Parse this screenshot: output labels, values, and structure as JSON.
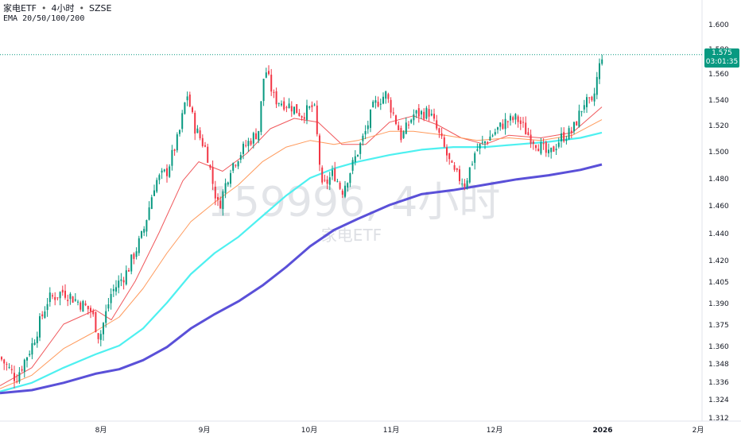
{
  "header": {
    "title": "家电ETF",
    "separator": "•",
    "interval": "4小时",
    "exchange": "SZSE",
    "indicator": "EMA 20/50/100/200"
  },
  "watermark": {
    "symbol_interval": "159996, 4小时",
    "name": "家电ETF"
  },
  "price_tag": {
    "price": "1.575",
    "countdown": "03:01:35"
  },
  "colors": {
    "up": "#089981",
    "down": "#f23645",
    "ema20": "#f0585c",
    "ema50": "#ff9a5c",
    "ema100": "#4ef0f0",
    "ema200": "#5a50d8",
    "price_line": "#089981"
  },
  "chart_data": {
    "type": "candlestick",
    "y_ticks": [
      "1.600",
      "1.580",
      "1.560",
      "1.540",
      "1.520",
      "1.500",
      "1.480",
      "1.460",
      "1.440",
      "1.420",
      "1.405",
      "1.390",
      "1.375",
      "1.360",
      "1.348",
      "1.336",
      "1.324",
      "1.312"
    ],
    "x_ticks": [
      "8月",
      "9月",
      "10月",
      "11月",
      "12月",
      "2026",
      "2月"
    ],
    "last_price": 1.575,
    "series": [
      {
        "name": "EMA 20",
        "points": [
          [
            0,
            1.333
          ],
          [
            40,
            1.345
          ],
          [
            80,
            1.375
          ],
          [
            120,
            1.385
          ],
          [
            140,
            1.378
          ],
          [
            170,
            1.405
          ],
          [
            200,
            1.44
          ],
          [
            230,
            1.478
          ],
          [
            250,
            1.492
          ],
          [
            280,
            1.485
          ],
          [
            310,
            1.498
          ],
          [
            340,
            1.517
          ],
          [
            370,
            1.525
          ],
          [
            400,
            1.522
          ],
          [
            430,
            1.505
          ],
          [
            460,
            1.505
          ],
          [
            490,
            1.522
          ],
          [
            520,
            1.527
          ],
          [
            550,
            1.52
          ],
          [
            580,
            1.51
          ],
          [
            610,
            1.505
          ],
          [
            640,
            1.512
          ],
          [
            680,
            1.51
          ],
          [
            720,
            1.514
          ],
          [
            757,
            1.534
          ]
        ]
      },
      {
        "name": "EMA 50",
        "points": [
          [
            0,
            1.331
          ],
          [
            40,
            1.34
          ],
          [
            80,
            1.358
          ],
          [
            120,
            1.37
          ],
          [
            150,
            1.38
          ],
          [
            180,
            1.4
          ],
          [
            210,
            1.425
          ],
          [
            240,
            1.448
          ],
          [
            270,
            1.462
          ],
          [
            300,
            1.475
          ],
          [
            330,
            1.492
          ],
          [
            360,
            1.503
          ],
          [
            390,
            1.508
          ],
          [
            420,
            1.505
          ],
          [
            450,
            1.508
          ],
          [
            490,
            1.515
          ],
          [
            520,
            1.515
          ],
          [
            560,
            1.512
          ],
          [
            600,
            1.508
          ],
          [
            640,
            1.51
          ],
          [
            680,
            1.508
          ],
          [
            720,
            1.512
          ],
          [
            757,
            1.524
          ]
        ]
      },
      {
        "name": "EMA 100",
        "points": [
          [
            0,
            1.329
          ],
          [
            40,
            1.335
          ],
          [
            80,
            1.345
          ],
          [
            120,
            1.354
          ],
          [
            150,
            1.36
          ],
          [
            180,
            1.372
          ],
          [
            210,
            1.39
          ],
          [
            240,
            1.41
          ],
          [
            270,
            1.425
          ],
          [
            300,
            1.437
          ],
          [
            330,
            1.452
          ],
          [
            360,
            1.467
          ],
          [
            390,
            1.48
          ],
          [
            420,
            1.487
          ],
          [
            450,
            1.492
          ],
          [
            490,
            1.497
          ],
          [
            530,
            1.501
          ],
          [
            570,
            1.503
          ],
          [
            610,
            1.503
          ],
          [
            650,
            1.505
          ],
          [
            690,
            1.507
          ],
          [
            730,
            1.51
          ],
          [
            757,
            1.514
          ]
        ]
      },
      {
        "name": "EMA 200",
        "points": [
          [
            0,
            1.328
          ],
          [
            40,
            1.33
          ],
          [
            80,
            1.335
          ],
          [
            120,
            1.341
          ],
          [
            150,
            1.344
          ],
          [
            180,
            1.35
          ],
          [
            210,
            1.359
          ],
          [
            240,
            1.372
          ],
          [
            270,
            1.382
          ],
          [
            300,
            1.391
          ],
          [
            330,
            1.402
          ],
          [
            360,
            1.415
          ],
          [
            390,
            1.43
          ],
          [
            420,
            1.442
          ],
          [
            450,
            1.45
          ],
          [
            490,
            1.46
          ],
          [
            530,
            1.468
          ],
          [
            570,
            1.471
          ],
          [
            610,
            1.475
          ],
          [
            650,
            1.479
          ],
          [
            690,
            1.482
          ],
          [
            730,
            1.486
          ],
          [
            757,
            1.49
          ]
        ]
      }
    ],
    "price_path": [
      [
        0,
        1.352
      ],
      [
        20,
        1.338
      ],
      [
        40,
        1.36
      ],
      [
        60,
        1.392
      ],
      [
        80,
        1.398
      ],
      [
        100,
        1.39
      ],
      [
        115,
        1.384
      ],
      [
        125,
        1.365
      ],
      [
        140,
        1.397
      ],
      [
        160,
        1.412
      ],
      [
        180,
        1.44
      ],
      [
        195,
        1.477
      ],
      [
        210,
        1.485
      ],
      [
        225,
        1.512
      ],
      [
        235,
        1.545
      ],
      [
        245,
        1.518
      ],
      [
        260,
        1.5
      ],
      [
        268,
        1.475
      ],
      [
        275,
        1.458
      ],
      [
        290,
        1.488
      ],
      [
        310,
        1.505
      ],
      [
        325,
        1.515
      ],
      [
        333,
        1.565
      ],
      [
        345,
        1.54
      ],
      [
        365,
        1.535
      ],
      [
        380,
        1.528
      ],
      [
        395,
        1.535
      ],
      [
        405,
        1.472
      ],
      [
        420,
        1.484
      ],
      [
        430,
        1.47
      ],
      [
        445,
        1.492
      ],
      [
        460,
        1.515
      ],
      [
        470,
        1.535
      ],
      [
        485,
        1.544
      ],
      [
        495,
        1.528
      ],
      [
        505,
        1.51
      ],
      [
        520,
        1.528
      ],
      [
        540,
        1.53
      ],
      [
        555,
        1.508
      ],
      [
        570,
        1.484
      ],
      [
        585,
        1.476
      ],
      [
        598,
        1.5
      ],
      [
        615,
        1.51
      ],
      [
        635,
        1.522
      ],
      [
        650,
        1.525
      ],
      [
        665,
        1.512
      ],
      [
        680,
        1.503
      ],
      [
        690,
        1.496
      ],
      [
        705,
        1.51
      ],
      [
        720,
        1.515
      ],
      [
        735,
        1.538
      ],
      [
        745,
        1.535
      ],
      [
        752,
        1.56
      ],
      [
        758,
        1.577
      ]
    ]
  }
}
